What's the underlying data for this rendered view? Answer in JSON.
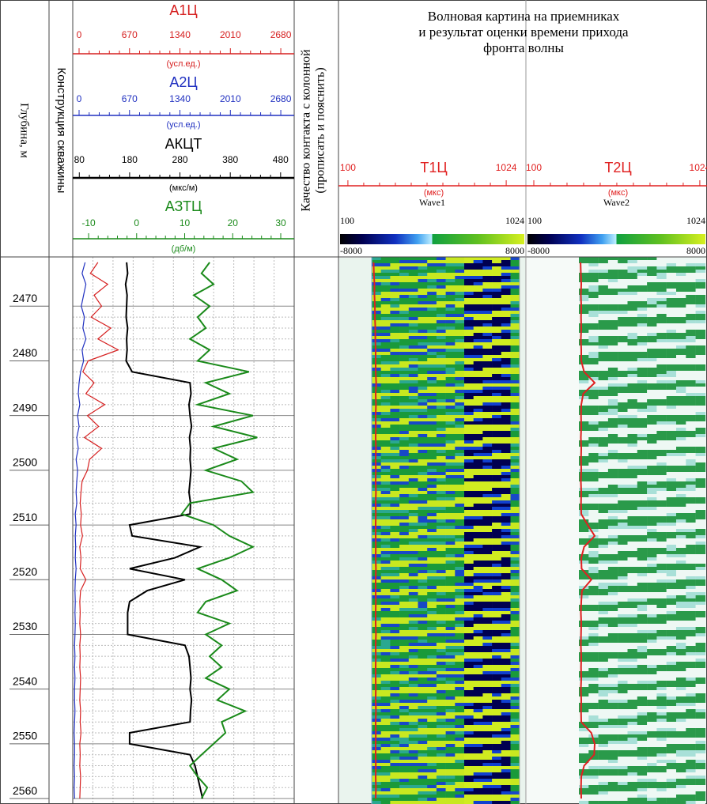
{
  "depth_header": "Глубина, м",
  "construction_header": "Конструкция скважины",
  "quality_header": [
    "Качество контакта с колонной",
    "(прописать и пояснить)"
  ],
  "wave_title": [
    "Волновая картина на приемниках",
    "и результат оценки времени прихода",
    "фронта волны"
  ],
  "chart_data": {
    "type": "line",
    "ylim": [
      2461,
      2561
    ],
    "yticks": [
      2470,
      2480,
      2490,
      2500,
      2510,
      2520,
      2530,
      2540,
      2550,
      2560
    ],
    "grid": true,
    "depth": [
      2462,
      2464,
      2466,
      2468,
      2470,
      2472,
      2474,
      2476,
      2478,
      2480,
      2482,
      2484,
      2486,
      2488,
      2490,
      2492,
      2494,
      2496,
      2498,
      2500,
      2502,
      2504,
      2506,
      2508,
      2510,
      2512,
      2514,
      2516,
      2518,
      2520,
      2522,
      2524,
      2526,
      2528,
      2530,
      2532,
      2534,
      2536,
      2538,
      2540,
      2542,
      2544,
      2546,
      2548,
      2550,
      2552,
      2554,
      2556,
      2558,
      2560
    ],
    "series": [
      {
        "name": "A1Ц",
        "unit": "(усл.ед.)",
        "color": "#d62020",
        "xlim": [
          -84,
          2858
        ],
        "xticks": [
          0,
          670,
          1340,
          2010,
          2680
        ],
        "values": [
          250,
          150,
          380,
          200,
          300,
          160,
          420,
          250,
          520,
          120,
          50,
          200,
          90,
          340,
          110,
          260,
          70,
          300,
          140,
          110,
          40,
          25,
          15,
          30,
          20,
          45,
          10,
          25,
          15,
          90,
          20,
          10,
          15,
          10,
          20,
          10,
          15,
          10,
          20,
          15,
          10,
          20,
          15,
          25,
          10,
          15,
          10,
          20,
          15,
          10
        ]
      },
      {
        "name": "A2Ц",
        "unit": "(усл.ед.)",
        "color": "#2030c0",
        "xlim": [
          -84,
          2858
        ],
        "xticks": [
          0,
          670,
          1340,
          2010,
          2680
        ],
        "values": [
          80,
          40,
          90,
          60,
          30,
          70,
          50,
          90,
          40,
          60,
          20,
          0,
          -10,
          10,
          -20,
          0,
          -30,
          -10,
          -40,
          -20,
          -30,
          -40,
          -30,
          -50,
          -40,
          -50,
          -45,
          -50,
          -40,
          -50,
          -55,
          -50,
          -55,
          -50,
          -55,
          -60,
          -55,
          -60,
          -55,
          -60,
          -60,
          -55,
          -60,
          -65,
          -60,
          -60,
          -65,
          -60,
          -65,
          -60
        ]
      },
      {
        "name": "АКЦТ",
        "unit": "(мкс/м)",
        "color": "#000000",
        "xlim": [
          67,
          507
        ],
        "xticks": [
          80,
          180,
          280,
          380,
          480
        ],
        "values": [
          174,
          176,
          172,
          175,
          174,
          173,
          176,
          174,
          175,
          173,
          185,
          300,
          302,
          298,
          300,
          303,
          299,
          301,
          300,
          302,
          300,
          298,
          301,
          300,
          180,
          185,
          320,
          270,
          180,
          290,
          215,
          180,
          176,
          176,
          176,
          290,
          298,
          300,
          302,
          300,
          303,
          301,
          300,
          180,
          180,
          300,
          310,
          315,
          320,
          325
        ]
      },
      {
        "name": "АЗТЦ",
        "unit": "(дб/м)",
        "color": "#1a8a1a",
        "xlim": [
          -13.3,
          32.8
        ],
        "xticks": [
          -10,
          0,
          10,
          20,
          30
        ],
        "values": [
          15.2,
          13.5,
          16.0,
          11.9,
          15.2,
          12.7,
          14.4,
          11.1,
          15.2,
          12.7,
          23.4,
          14.4,
          19.3,
          12.7,
          24.2,
          16.0,
          25.1,
          16.0,
          20.9,
          14.4,
          21.8,
          24.2,
          11.1,
          9.4,
          16.0,
          19.3,
          24.2,
          19.3,
          12.7,
          17.7,
          20.9,
          14.4,
          12.7,
          19.3,
          14.4,
          17.7,
          15.2,
          17.7,
          14.4,
          19.3,
          16.8,
          22.6,
          17.7,
          18.5,
          16.0,
          13.5,
          11.1,
          12.7,
          14.7,
          13.5
        ]
      },
      {
        "name": "T1Ц",
        "unit": "(мкс)",
        "color": "#e02020",
        "xlim": [
          45,
          1139
        ],
        "xticks": [
          100,
          1024
        ],
        "values": [
          250,
          252,
          255,
          255,
          258,
          258,
          260,
          260,
          262,
          262,
          262,
          265,
          262,
          264,
          262,
          263,
          262,
          264,
          262,
          263,
          262,
          264,
          262,
          263,
          262,
          262,
          263,
          262,
          264,
          262,
          262,
          263,
          262,
          262,
          264,
          262,
          263,
          262,
          262,
          263,
          262,
          264,
          262,
          263,
          262,
          262,
          263,
          262,
          264,
          262
        ]
      },
      {
        "name": "T2Ц",
        "unit": "(мкс)",
        "color": "#e02020",
        "xlim": [
          56,
          1064
        ],
        "xticks": [
          100,
          1024
        ],
        "values": [
          360,
          362,
          364,
          362,
          364,
          363,
          364,
          362,
          364,
          364,
          380,
          439,
          375,
          364,
          363,
          364,
          362,
          364,
          363,
          364,
          362,
          364,
          363,
          364,
          400,
          439,
          380,
          364,
          366,
          420,
          368,
          364,
          362,
          364,
          363,
          362,
          364,
          363,
          364,
          362,
          364,
          363,
          364,
          420,
          439,
          436,
          380,
          364,
          363,
          364
        ]
      }
    ],
    "panels": [
      {
        "name": "Wave1",
        "range_ticks": [
          100,
          1024
        ],
        "color_ticks": [
          -8000,
          8000
        ]
      },
      {
        "name": "Wave2",
        "range_ticks": [
          100,
          1024
        ],
        "color_ticks": [
          -8000,
          8000
        ]
      }
    ]
  }
}
